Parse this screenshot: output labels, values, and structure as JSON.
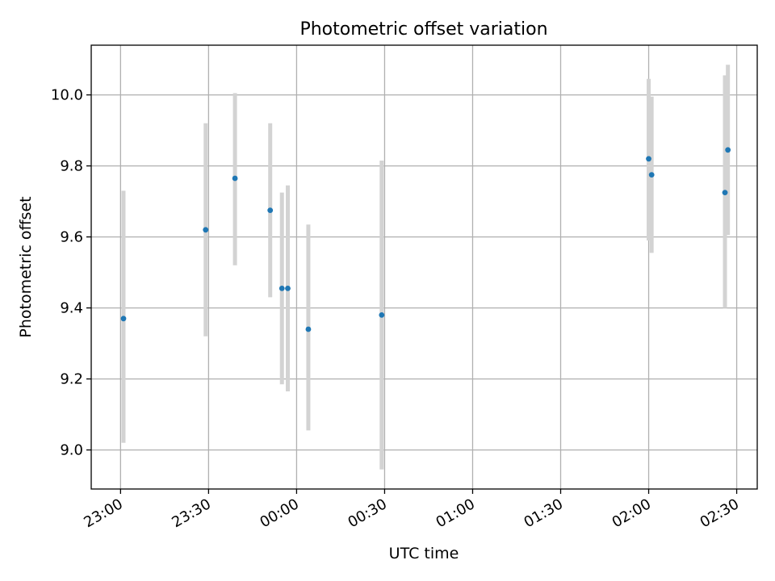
{
  "chart_data": {
    "type": "scatter",
    "title": "Photometric offset variation",
    "xlabel": "UTC time",
    "ylabel": "Photometric offset",
    "x_ticks": [
      "23:00",
      "23:30",
      "00:00",
      "00:30",
      "01:00",
      "01:30",
      "02:00",
      "02:30"
    ],
    "y_ticks": [
      "9.0",
      "9.2",
      "9.4",
      "9.6",
      "9.8",
      "10.0"
    ],
    "xlim": [
      "22:50",
      "02:37"
    ],
    "ylim": [
      8.89,
      10.14
    ],
    "grid": true,
    "marker_color": "#1f77b4",
    "errorbar_color": "#d3d3d3",
    "points": [
      {
        "x": "23:01",
        "y": 9.37,
        "yerr_low": 9.02,
        "yerr_high": 9.73
      },
      {
        "x": "23:29",
        "y": 9.62,
        "yerr_low": 9.32,
        "yerr_high": 9.92
      },
      {
        "x": "23:39",
        "y": 9.765,
        "yerr_low": 9.52,
        "yerr_high": 10.005
      },
      {
        "x": "23:51",
        "y": 9.675,
        "yerr_low": 9.43,
        "yerr_high": 9.92
      },
      {
        "x": "23:55",
        "y": 9.455,
        "yerr_low": 9.185,
        "yerr_high": 9.725
      },
      {
        "x": "23:57",
        "y": 9.455,
        "yerr_low": 9.165,
        "yerr_high": 9.745
      },
      {
        "x": "00:04",
        "y": 9.34,
        "yerr_low": 9.055,
        "yerr_high": 9.635
      },
      {
        "x": "00:29",
        "y": 9.38,
        "yerr_low": 8.945,
        "yerr_high": 9.815
      },
      {
        "x": "02:00",
        "y": 9.82,
        "yerr_low": 9.59,
        "yerr_high": 10.045
      },
      {
        "x": "02:01",
        "y": 9.775,
        "yerr_low": 9.555,
        "yerr_high": 9.995
      },
      {
        "x": "02:26",
        "y": 9.725,
        "yerr_low": 9.4,
        "yerr_high": 10.055
      },
      {
        "x": "02:27",
        "y": 9.845,
        "yerr_low": 9.605,
        "yerr_high": 10.085
      }
    ]
  }
}
